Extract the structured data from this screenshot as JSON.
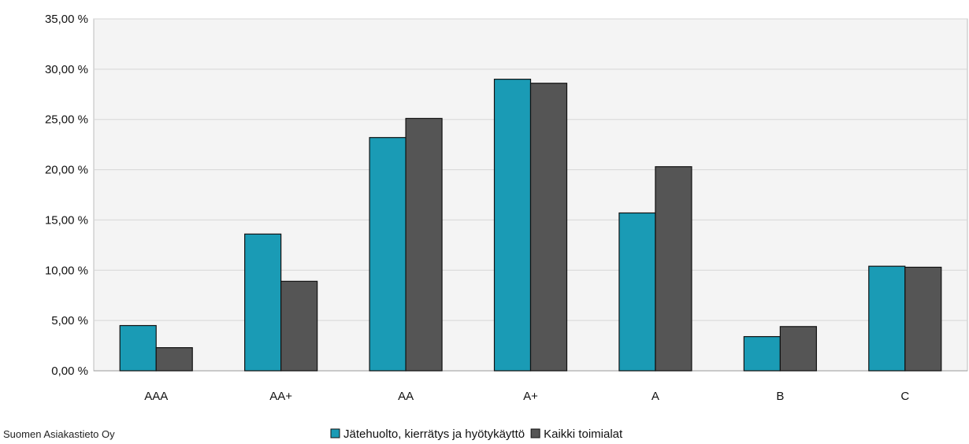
{
  "chart_data": {
    "type": "bar",
    "categories": [
      "AAA",
      "AA+",
      "AA",
      "A+",
      "A",
      "B",
      "C"
    ],
    "series": [
      {
        "name": "Jätehuolto, kierrätys ja hyötykäyttö",
        "color": "#1a9bb5",
        "values": [
          4.5,
          13.6,
          23.2,
          29.0,
          15.7,
          3.4,
          10.4
        ]
      },
      {
        "name": "Kaikki toimialat",
        "color": "#555555",
        "values": [
          2.3,
          8.9,
          25.1,
          28.6,
          20.3,
          4.4,
          10.3
        ]
      }
    ],
    "y_ticks": [
      "0,00 %",
      "5,00 %",
      "10,00 %",
      "15,00 %",
      "20,00 %",
      "25,00 %",
      "30,00 %",
      "35,00 %"
    ],
    "ylim": [
      0,
      35
    ],
    "grid": true,
    "legend_position": "bottom",
    "plot_background": "#f4f4f4"
  },
  "source": "Suomen Asiakastieto Oy"
}
